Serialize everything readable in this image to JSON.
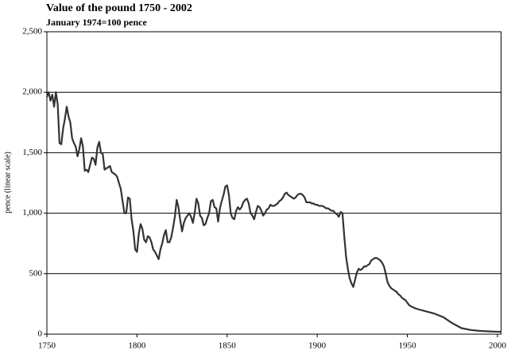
{
  "chart_data": {
    "type": "line",
    "title": "Value of the pound 1750 - 2002",
    "subtitle": "January 1974=100 pence",
    "y_label": "pence (linear scale)",
    "x": [
      1750,
      1751,
      1752,
      1753,
      1754,
      1755,
      1756,
      1757,
      1758,
      1759,
      1760,
      1761,
      1762,
      1763,
      1764,
      1765,
      1766,
      1767,
      1768,
      1769,
      1770,
      1771,
      1772,
      1773,
      1774,
      1775,
      1776,
      1777,
      1778,
      1779,
      1780,
      1781,
      1782,
      1783,
      1784,
      1785,
      1786,
      1787,
      1788,
      1789,
      1790,
      1791,
      1792,
      1793,
      1794,
      1795,
      1796,
      1797,
      1798,
      1799,
      1800,
      1801,
      1802,
      1803,
      1804,
      1805,
      1806,
      1807,
      1808,
      1809,
      1810,
      1811,
      1812,
      1813,
      1814,
      1815,
      1816,
      1817,
      1818,
      1819,
      1820,
      1821,
      1822,
      1823,
      1824,
      1825,
      1826,
      1827,
      1828,
      1829,
      1830,
      1831,
      1832,
      1833,
      1834,
      1835,
      1836,
      1837,
      1838,
      1839,
      1840,
      1841,
      1842,
      1843,
      1844,
      1845,
      1846,
      1847,
      1848,
      1849,
      1850,
      1851,
      1852,
      1853,
      1854,
      1855,
      1856,
      1857,
      1858,
      1859,
      1860,
      1861,
      1862,
      1863,
      1864,
      1865,
      1866,
      1867,
      1868,
      1869,
      1870,
      1871,
      1872,
      1873,
      1874,
      1875,
      1876,
      1877,
      1878,
      1879,
      1880,
      1881,
      1882,
      1883,
      1884,
      1885,
      1886,
      1887,
      1888,
      1889,
      1890,
      1891,
      1892,
      1893,
      1894,
      1895,
      1896,
      1897,
      1898,
      1899,
      1900,
      1901,
      1902,
      1903,
      1904,
      1905,
      1906,
      1907,
      1908,
      1909,
      1910,
      1911,
      1912,
      1913,
      1914,
      1915,
      1916,
      1917,
      1918,
      1919,
      1920,
      1921,
      1922,
      1923,
      1924,
      1925,
      1926,
      1927,
      1928,
      1929,
      1930,
      1931,
      1932,
      1933,
      1934,
      1935,
      1936,
      1937,
      1938,
      1939,
      1940,
      1941,
      1942,
      1943,
      1944,
      1945,
      1946,
      1947,
      1948,
      1949,
      1950,
      1951,
      1952,
      1955,
      1960,
      1965,
      1970,
      1975,
      1980,
      1985,
      1990,
      1995,
      2000,
      2002
    ],
    "series": [
      {
        "name": "Value of the pound",
        "color": "#333333",
        "values": [
          1960,
          2000,
          1930,
          1980,
          1880,
          2000,
          1900,
          1580,
          1570,
          1700,
          1780,
          1880,
          1800,
          1750,
          1620,
          1580,
          1550,
          1470,
          1530,
          1620,
          1550,
          1350,
          1360,
          1340,
          1400,
          1460,
          1450,
          1400,
          1540,
          1590,
          1500,
          1490,
          1360,
          1370,
          1380,
          1390,
          1340,
          1330,
          1320,
          1300,
          1250,
          1200,
          1100,
          1000,
          1000,
          1130,
          1120,
          950,
          850,
          700,
          680,
          830,
          910,
          870,
          780,
          760,
          810,
          800,
          760,
          700,
          680,
          650,
          620,
          700,
          750,
          820,
          860,
          760,
          760,
          800,
          880,
          970,
          1110,
          1050,
          940,
          850,
          920,
          960,
          980,
          1000,
          970,
          920,
          1000,
          1120,
          1080,
          980,
          960,
          900,
          910,
          960,
          1000,
          1100,
          1110,
          1050,
          1040,
          930,
          1040,
          1100,
          1150,
          1220,
          1230,
          1150,
          1000,
          960,
          950,
          1020,
          1050,
          1030,
          1050,
          1090,
          1110,
          1120,
          1080,
          1000,
          980,
          950,
          1010,
          1060,
          1050,
          1020,
          980,
          1000,
          1030,
          1040,
          1070,
          1060,
          1060,
          1070,
          1080,
          1100,
          1110,
          1130,
          1160,
          1170,
          1150,
          1140,
          1130,
          1120,
          1130,
          1150,
          1160,
          1160,
          1150,
          1130,
          1090,
          1090,
          1090,
          1080,
          1080,
          1070,
          1070,
          1060,
          1060,
          1060,
          1050,
          1040,
          1040,
          1030,
          1020,
          1020,
          1000,
          990,
          970,
          1010,
          1000,
          810,
          640,
          540,
          460,
          420,
          390,
          450,
          510,
          540,
          530,
          540,
          560,
          560,
          570,
          580,
          610,
          620,
          630,
          630,
          620,
          610,
          590,
          560,
          500,
          430,
          400,
          380,
          370,
          360,
          350,
          330,
          320,
          300,
          290,
          280,
          260,
          240,
          230,
          210,
          190,
          170,
          140,
          90,
          50,
          35,
          27,
          23,
          20,
          20
        ]
      }
    ],
    "xlim": [
      1750,
      2002
    ],
    "xticks": [
      1750,
      1800,
      1850,
      1900,
      1950,
      2000
    ],
    "ylim": [
      0,
      2500
    ],
    "yticks": [
      0,
      500,
      {
        "value": 1000,
        "label": "1,000"
      },
      {
        "value": 1500,
        "label": "1,500"
      },
      {
        "value": 2000,
        "label": "2,000"
      },
      {
        "value": 2500,
        "label": "2,500"
      }
    ],
    "grid": true
  }
}
